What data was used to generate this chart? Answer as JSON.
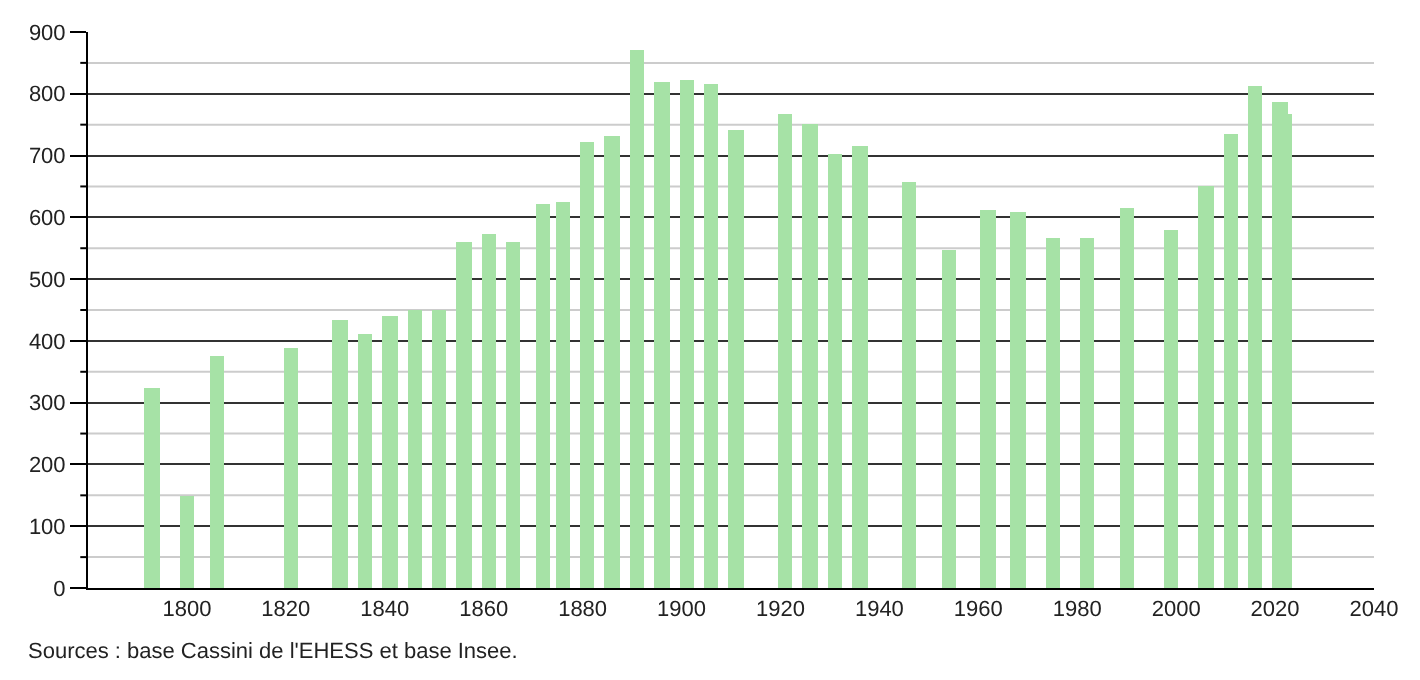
{
  "chart_data": {
    "type": "bar",
    "x": [
      1793,
      1800,
      1806,
      1821,
      1831,
      1836,
      1841,
      1846,
      1851,
      1856,
      1861,
      1866,
      1872,
      1876,
      1881,
      1886,
      1891,
      1896,
      1901,
      1906,
      1911,
      1921,
      1926,
      1931,
      1936,
      1946,
      1954,
      1962,
      1968,
      1975,
      1982,
      1990,
      1999,
      2006,
      2011,
      2016,
      2021,
      2022
    ],
    "values": [
      325,
      148,
      377,
      390,
      433,
      412,
      439,
      451,
      451,
      561,
      573,
      560,
      620,
      626,
      722,
      731,
      872,
      818,
      821,
      817,
      740,
      768,
      751,
      703,
      716,
      657,
      547,
      612,
      610,
      567,
      568,
      615,
      578,
      650,
      735,
      812,
      788,
      768
    ],
    "color": "#a6e2a6",
    "xlim": [
      1780,
      2040
    ],
    "xticks": [
      1800,
      1820,
      1840,
      1860,
      1880,
      1900,
      1920,
      1940,
      1960,
      1980,
      2000,
      2020,
      2040
    ],
    "ylim": [
      0,
      900
    ],
    "yticks": [
      0,
      {
        "value": 50,
        "label": null
      },
      100,
      {
        "value": 150,
        "label": null
      },
      200,
      {
        "value": 250,
        "label": null
      },
      300,
      {
        "value": 350,
        "label": null
      },
      400,
      {
        "value": 450,
        "label": null
      },
      500,
      {
        "value": 550,
        "label": null
      },
      600,
      {
        "value": 650,
        "label": null
      },
      700,
      {
        "value": 750,
        "label": null
      },
      800,
      {
        "value": 850,
        "label": null
      },
      900
    ],
    "grid": "y",
    "annotations": [
      "Sources : base Cassini de l'EHESS et base Insee."
    ]
  }
}
